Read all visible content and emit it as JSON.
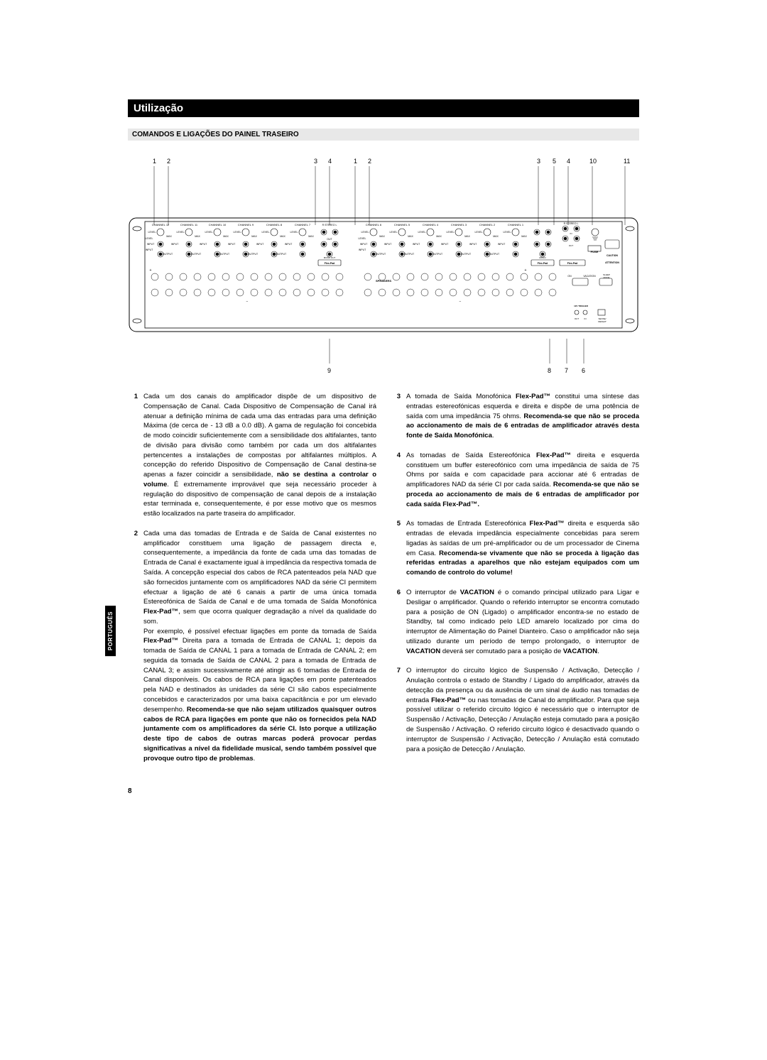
{
  "title": "Utilização",
  "subtitle": "COMANDOS E LIGAÇÕES DO PAINEL TRASEIRO",
  "side_tab": "PORTUGUÊS",
  "page_number": "8",
  "callouts_top": [
    "1",
    "2",
    "3",
    "4",
    "1",
    "2",
    "3",
    "5",
    "4",
    "10",
    "11"
  ],
  "callouts_bottom": [
    "9",
    "8",
    "7",
    "6"
  ],
  "panel_labels": {
    "channels_left": [
      "CHANNEL 12",
      "CHANNEL 11",
      "CHANNEL 10",
      "CHANNEL 9",
      "CHANNEL 8",
      "CHANNEL 7"
    ],
    "channels_right": [
      "CHANNEL 6",
      "CHANNEL 5",
      "CHANNEL 4",
      "CHANNEL 3",
      "CHANNEL 2",
      "CHANNEL 1"
    ],
    "level": "LEVEL",
    "max": "MAX",
    "input": "INPUT",
    "output": "OUTPUT",
    "stereo": "STEREO",
    "mono_out": "MONO OUT",
    "out": "OUT",
    "in": "IN",
    "flexpad": "Flex-Pad",
    "speakers": "SPEAKERS",
    "fuse": "FUSE",
    "caution": "CAUTION",
    "attention": "ATTENTION",
    "on": "ON",
    "vacation": "VACATION",
    "sleep_mode": "SLEEP MODE",
    "trigger": "12V TRIGGER",
    "sense_defeat": "SENSE/ DEFEAT",
    "out2": "OUT",
    "in2": "IN"
  },
  "items": [
    {
      "num": "1",
      "html": "Cada um dos canais do amplificador dispõe de um dispositivo de Compensação de Canal. Cada Dispositivo de Compensação de Canal irá atenuar a definição mínima de cada uma das entradas para uma definição Máxima (de cerca de - 13 dB a 0.0 dB). A gama de regulação foi concebida de modo coincidir suficientemente com a sensibilidade dos altifalantes, tanto de divisão para divisão como também por cada um dos altifalantes pertencentes a instalações de compostas por altifalantes múltiplos. A concepção do referido Dispositivo de Compensação de Canal destina-se apenas a fazer coincidir a sensibilidade, <b>não se destina a controlar o volume</b>. É extremamente improvável que seja necessário proceder à regulação do dispositivo de compensação de canal depois de a instalação estar terminada e, consequentemente, é por esse motivo que os mesmos estão localizados na parte traseira do amplificador."
    },
    {
      "num": "2",
      "html": "Cada uma das tomadas de Entrada e de Saída de Canal existentes no amplificador constituem uma ligação de passagem directa e, consequentemente, a impedância da fonte de cada uma das tomadas de Entrada de Canal é exactamente igual à impedância da respectiva tomada de Saída. A concepção especial dos cabos de RCA patenteados pela NAD que são fornecidos juntamente com os amplificadores NAD da série CI permitem efectuar a ligação de até 6 canais a partir de uma única tomada Estereofónica de Saída de Canal e de uma tomada de Saída Monofónica <b>Flex-Pad™</b>, sem que ocorra qualquer degradação a nível da qualidade do som.<br>Por exemplo, é possível efectuar ligações em ponte da tomada de Saída <b>Flex-Pad™</b> Direita para a tomada de Entrada de CANAL 1; depois da tomada de Saída de CANAL 1 para a tomada de Entrada de CANAL 2; em seguida da tomada de Saída de CANAL 2 para a tomada de Entrada de CANAL 3; e assim sucessivamente até atingir as 6 tomadas de Entrada de Canal disponíveis. Os cabos de RCA para ligações em ponte patenteados pela NAD e destinados às unidades da série CI são cabos especialmente concebidos e caracterizados por uma baixa capacitância e por um elevado desempenho. <b>Recomenda-se que não sejam utilizados quaisquer outros cabos de RCA para ligações em ponte que não os fornecidos pela NAD juntamente com os amplificadores da série CI. Isto porque a utilização deste tipo de cabos de outras marcas poderá provocar perdas significativas a nível da fidelidade musical, sendo também possível que provoque outro tipo de problemas</b>."
    },
    {
      "num": "3",
      "html": "A tomada de Saída Monofónica <b>Flex-Pad™</b> constitui uma síntese das entradas estereofónicas esquerda e direita e dispõe de uma potência de saída com uma impedância 75 ohms. <b>Recomenda-se que não se proceda ao accionamento de mais de 6 entradas de amplificador através desta fonte de Saída Monofónica</b>."
    },
    {
      "num": "4",
      "html": "As tomadas de Saída Estereofónica <b>Flex-Pad™</b> direita e esquerda constituem um buffer estereofónico com uma impedância de saída de 75 Ohms por saída e com capacidade para accionar até 6 entradas de amplificadores NAD da série CI por cada saída. <b>Recomenda-se que não se proceda ao accionamento de mais de 6 entradas de amplificador por cada saída Flex-Pad™.</b>"
    },
    {
      "num": "5",
      "html": "As tomadas de Entrada Estereofónica <b>Flex-Pad™</b> direita e esquerda são entradas de elevada impedância especialmente concebidas para serem ligadas às saídas de um pré-amplificador ou de um processador de Cinema em Casa. <b>Recomenda-se vivamente que não se proceda à ligação das referidas entradas a aparelhos que não estejam equipados com um comando de controlo do volume!</b>"
    },
    {
      "num": "6",
      "html": "O interruptor de <b>VACATION</b> é o comando principal utilizado para Ligar e Desligar o amplificador. Quando o referido interruptor se encontra comutado para a posição de ON (Ligado) o amplificador encontra-se no estado de Standby, tal como indicado pelo LED amarelo localizado por cima do interruptor de Alimentação do Painel Dianteiro. Caso o amplificador não seja utilizado durante um período de tempo prolongado, o interruptor de <b>VACATION</b> deverá ser comutado para a posição de <b>VACATION</b>."
    },
    {
      "num": "7",
      "html": "O interruptor do circuito lógico de Suspensão / Activação, Detecção / Anulação controla o estado de Standby / Ligado do amplificador, através da detecção da presença ou da ausência de um sinal de áudio nas tomadas de entrada <b>Flex-Pad™</b> ou nas tomadas de Canal do amplificador. Para que seja possível utilizar o referido circuito lógico é necessário que o interruptor de Suspensão / Activação, Detecção / Anulação esteja comutado para a posição de Suspensão / Activação. O referido circuito lógico é desactivado quando o interruptor de Suspensão / Activação, Detecção / Anulação está comutado para a posição de Detecção / Anulação."
    }
  ]
}
